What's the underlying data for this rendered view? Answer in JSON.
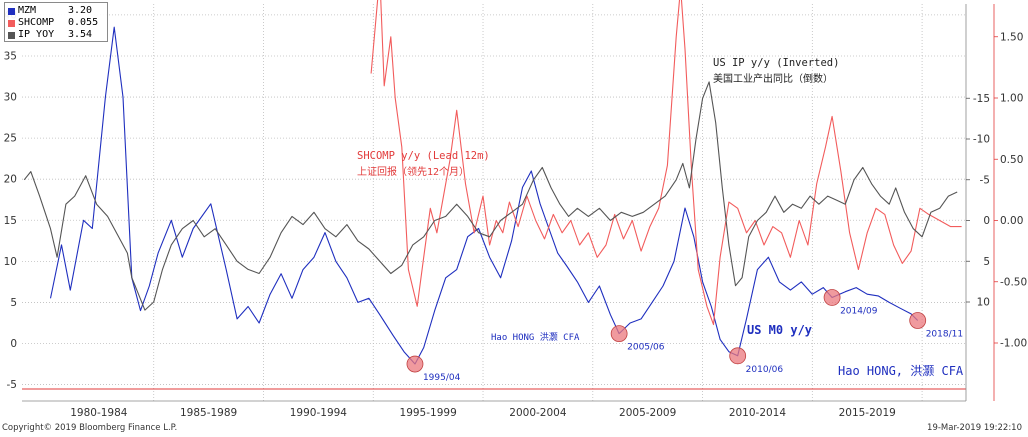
{
  "legend": [
    {
      "name": "MZM",
      "value": "3.20",
      "color": "#1f2fbf"
    },
    {
      "name": "SHCOMP",
      "value": "0.055",
      "color": "#f25c5c"
    },
    {
      "name": "IP  YOY",
      "value": "3.54",
      "color": "#555555"
    }
  ],
  "annotations": {
    "ip_title_en": "US IP y/y (Inverted)",
    "ip_title_cn": "美国工业产出同比（倒数）",
    "sh_title_en": "SHCOMP y/y (Lead 12m)",
    "sh_title_cn": "上证回报（领先12个月）",
    "author_small": "Hao HONG 洪灏 CFA",
    "m0_label": "US M0 y/y",
    "author_big": "Hao HONG, 洪灏 CFA"
  },
  "markers": [
    {
      "label": "1995/04",
      "x": 1996.9,
      "y": -2.5
    },
    {
      "label": "2005/06",
      "x": 2006.2,
      "y": 1.2
    },
    {
      "label": "2010/06",
      "x": 2011.6,
      "y": -1.5
    },
    {
      "label": "2014/09",
      "x": 2015.9,
      "y": 5.6
    },
    {
      "label": "2018/11",
      "x": 2019.8,
      "y": 2.8
    }
  ],
  "footer": {
    "copyright": "Copyright© 2019 Bloomberg Finance L.P.",
    "timestamp": "19-Mar-2019 19:22:10"
  },
  "chart_data": {
    "type": "line",
    "x_tick_labels": [
      "1980-1984",
      "1985-1989",
      "1990-1994",
      "1995-1999",
      "2000-2004",
      "2005-2009",
      "2010-2014",
      "2015-2019"
    ],
    "xlim": [
      1979.0,
      2022.0
    ],
    "left_axis": {
      "ylim": [
        -6,
        41
      ],
      "ticks": [
        -5,
        0,
        5,
        10,
        15,
        20,
        25,
        30,
        35,
        40
      ]
    },
    "ip_axis": {
      "inverted": true,
      "ticks": [
        -15,
        -10,
        -5,
        0,
        5,
        10
      ]
    },
    "shcomp_axis": {
      "ylim": [
        -1.25,
        2.15
      ],
      "ticks": [
        -1.0,
        -0.5,
        0.0,
        0.5,
        1.0,
        1.5,
        2.0
      ]
    },
    "series": [
      {
        "name": "MZM",
        "axis": "left",
        "color": "#1f2fbf",
        "points": [
          [
            1980.3,
            5.5
          ],
          [
            1980.8,
            12.0
          ],
          [
            1981.2,
            6.5
          ],
          [
            1981.8,
            15.0
          ],
          [
            1982.2,
            14.0
          ],
          [
            1982.8,
            30.0
          ],
          [
            1983.2,
            38.5
          ],
          [
            1983.6,
            30.0
          ],
          [
            1984.0,
            8.0
          ],
          [
            1984.4,
            4.0
          ],
          [
            1984.8,
            7.0
          ],
          [
            1985.2,
            11.0
          ],
          [
            1985.8,
            15.0
          ],
          [
            1986.3,
            10.5
          ],
          [
            1986.8,
            14.0
          ],
          [
            1987.6,
            17.0
          ],
          [
            1988.3,
            9.0
          ],
          [
            1988.8,
            3.0
          ],
          [
            1989.3,
            4.5
          ],
          [
            1989.8,
            2.5
          ],
          [
            1990.3,
            6.0
          ],
          [
            1990.8,
            8.5
          ],
          [
            1991.3,
            5.5
          ],
          [
            1991.8,
            9.0
          ],
          [
            1992.3,
            10.5
          ],
          [
            1992.8,
            13.5
          ],
          [
            1993.3,
            10.0
          ],
          [
            1993.8,
            8.0
          ],
          [
            1994.3,
            5.0
          ],
          [
            1994.8,
            5.5
          ],
          [
            1995.3,
            3.5
          ],
          [
            1995.9,
            1.0
          ],
          [
            1996.4,
            -1.0
          ],
          [
            1996.9,
            -2.5
          ],
          [
            1997.3,
            -0.5
          ],
          [
            1997.8,
            4.0
          ],
          [
            1998.3,
            8.0
          ],
          [
            1998.8,
            9.0
          ],
          [
            1999.3,
            13.0
          ],
          [
            1999.8,
            14.0
          ],
          [
            2000.3,
            10.5
          ],
          [
            2000.8,
            8.0
          ],
          [
            2001.3,
            12.5
          ],
          [
            2001.8,
            19.0
          ],
          [
            2002.2,
            21.0
          ],
          [
            2002.6,
            17.0
          ],
          [
            2003.0,
            14.0
          ],
          [
            2003.4,
            11.0
          ],
          [
            2003.8,
            9.5
          ],
          [
            2004.3,
            7.5
          ],
          [
            2004.8,
            5.0
          ],
          [
            2005.3,
            7.0
          ],
          [
            2005.8,
            3.5
          ],
          [
            2006.2,
            1.2
          ],
          [
            2006.7,
            2.5
          ],
          [
            2007.2,
            3.0
          ],
          [
            2007.7,
            5.0
          ],
          [
            2008.2,
            7.0
          ],
          [
            2008.7,
            10.0
          ],
          [
            2009.2,
            16.5
          ],
          [
            2009.6,
            13.0
          ],
          [
            2010.0,
            7.5
          ],
          [
            2010.4,
            4.5
          ],
          [
            2010.8,
            0.5
          ],
          [
            2011.2,
            -1.0
          ],
          [
            2011.6,
            -1.5
          ],
          [
            2012.0,
            3.0
          ],
          [
            2012.5,
            9.0
          ],
          [
            2013.0,
            10.5
          ],
          [
            2013.5,
            7.5
          ],
          [
            2014.0,
            6.5
          ],
          [
            2014.5,
            7.5
          ],
          [
            2015.0,
            6.0
          ],
          [
            2015.5,
            6.8
          ],
          [
            2015.9,
            5.6
          ],
          [
            2016.5,
            6.3
          ],
          [
            2017.0,
            6.8
          ],
          [
            2017.5,
            6.0
          ],
          [
            2018.0,
            5.8
          ],
          [
            2018.5,
            5.0
          ],
          [
            2019.0,
            4.3
          ],
          [
            2019.5,
            3.6
          ],
          [
            2019.8,
            2.8
          ]
        ]
      },
      {
        "name": "SHCOMP",
        "axis": "shcomp",
        "color": "#f25c5c",
        "points": [
          [
            1994.9,
            1.2
          ],
          [
            1995.3,
            2.0
          ],
          [
            1995.5,
            1.1
          ],
          [
            1995.8,
            1.5
          ],
          [
            1996.0,
            1.0
          ],
          [
            1996.3,
            0.6
          ],
          [
            1996.6,
            -0.4
          ],
          [
            1997.0,
            -0.7
          ],
          [
            1997.3,
            -0.3
          ],
          [
            1997.6,
            0.1
          ],
          [
            1997.9,
            -0.1
          ],
          [
            1998.2,
            0.2
          ],
          [
            1998.5,
            0.5
          ],
          [
            1998.8,
            0.9
          ],
          [
            1999.2,
            0.3
          ],
          [
            1999.6,
            -0.1
          ],
          [
            2000.0,
            0.2
          ],
          [
            2000.3,
            -0.2
          ],
          [
            2000.6,
            0.0
          ],
          [
            2000.9,
            -0.1
          ],
          [
            2001.2,
            0.15
          ],
          [
            2001.6,
            -0.05
          ],
          [
            2002.0,
            0.2
          ],
          [
            2002.4,
            0.0
          ],
          [
            2002.8,
            -0.15
          ],
          [
            2003.2,
            0.05
          ],
          [
            2003.6,
            -0.1
          ],
          [
            2004.0,
            0.0
          ],
          [
            2004.4,
            -0.2
          ],
          [
            2004.8,
            -0.1
          ],
          [
            2005.2,
            -0.3
          ],
          [
            2005.6,
            -0.2
          ],
          [
            2006.0,
            0.05
          ],
          [
            2006.4,
            -0.15
          ],
          [
            2006.8,
            0.0
          ],
          [
            2007.2,
            -0.25
          ],
          [
            2007.6,
            -0.05
          ],
          [
            2008.0,
            0.1
          ],
          [
            2008.4,
            0.45
          ],
          [
            2008.8,
            1.5
          ],
          [
            2009.0,
            1.9
          ],
          [
            2009.2,
            1.4
          ],
          [
            2009.5,
            0.4
          ],
          [
            2009.8,
            -0.4
          ],
          [
            2010.2,
            -0.7
          ],
          [
            2010.5,
            -0.85
          ],
          [
            2010.8,
            -0.3
          ],
          [
            2011.2,
            0.15
          ],
          [
            2011.6,
            0.1
          ],
          [
            2012.0,
            -0.1
          ],
          [
            2012.4,
            0.0
          ],
          [
            2012.8,
            -0.2
          ],
          [
            2013.2,
            -0.05
          ],
          [
            2013.6,
            -0.1
          ],
          [
            2014.0,
            -0.3
          ],
          [
            2014.4,
            0.0
          ],
          [
            2014.8,
            -0.2
          ],
          [
            2015.2,
            0.3
          ],
          [
            2015.6,
            0.6
          ],
          [
            2015.9,
            0.85
          ],
          [
            2016.3,
            0.4
          ],
          [
            2016.7,
            -0.1
          ],
          [
            2017.1,
            -0.4
          ],
          [
            2017.5,
            -0.1
          ],
          [
            2017.9,
            0.1
          ],
          [
            2018.3,
            0.05
          ],
          [
            2018.7,
            -0.2
          ],
          [
            2019.1,
            -0.35
          ],
          [
            2019.5,
            -0.25
          ],
          [
            2019.9,
            0.1
          ],
          [
            2020.3,
            0.05
          ],
          [
            2020.8,
            0.0
          ],
          [
            2021.3,
            -0.05
          ],
          [
            2021.8,
            -0.05
          ]
        ]
      },
      {
        "name": "IP  YOY",
        "axis": "ip",
        "color": "#555555",
        "points": [
          [
            1979.1,
            -5.0
          ],
          [
            1979.4,
            -6.0
          ],
          [
            1979.8,
            -3.0
          ],
          [
            1980.3,
            1.0
          ],
          [
            1980.6,
            4.5
          ],
          [
            1981.0,
            -2.0
          ],
          [
            1981.4,
            -3.0
          ],
          [
            1981.9,
            -5.5
          ],
          [
            1982.4,
            -2.0
          ],
          [
            1982.9,
            -0.5
          ],
          [
            1983.4,
            2.0
          ],
          [
            1983.8,
            4.0
          ],
          [
            1984.0,
            7.0
          ],
          [
            1984.3,
            9.0
          ],
          [
            1984.6,
            11.0
          ],
          [
            1985.0,
            10.0
          ],
          [
            1985.4,
            6.0
          ],
          [
            1985.8,
            3.0
          ],
          [
            1986.3,
            1.0
          ],
          [
            1986.8,
            0.0
          ],
          [
            1987.3,
            2.0
          ],
          [
            1987.8,
            1.0
          ],
          [
            1988.3,
            3.0
          ],
          [
            1988.8,
            5.0
          ],
          [
            1989.3,
            6.0
          ],
          [
            1989.8,
            6.5
          ],
          [
            1990.3,
            4.5
          ],
          [
            1990.8,
            1.5
          ],
          [
            1991.3,
            -0.5
          ],
          [
            1991.8,
            0.5
          ],
          [
            1992.3,
            -1.0
          ],
          [
            1992.8,
            1.0
          ],
          [
            1993.3,
            2.0
          ],
          [
            1993.8,
            0.5
          ],
          [
            1994.3,
            2.5
          ],
          [
            1994.8,
            3.5
          ],
          [
            1995.3,
            5.0
          ],
          [
            1995.8,
            6.5
          ],
          [
            1996.3,
            5.5
          ],
          [
            1996.8,
            3.0
          ],
          [
            1997.3,
            2.0
          ],
          [
            1997.8,
            0.0
          ],
          [
            1998.3,
            -0.5
          ],
          [
            1998.8,
            -2.0
          ],
          [
            1999.3,
            -0.5
          ],
          [
            1999.8,
            1.5
          ],
          [
            2000.3,
            2.0
          ],
          [
            2000.8,
            0.0
          ],
          [
            2001.3,
            -1.0
          ],
          [
            2001.8,
            -2.0
          ],
          [
            2002.3,
            -5.0
          ],
          [
            2002.7,
            -6.5
          ],
          [
            2003.1,
            -4.0
          ],
          [
            2003.5,
            -2.0
          ],
          [
            2003.9,
            -0.5
          ],
          [
            2004.3,
            -1.5
          ],
          [
            2004.8,
            -0.5
          ],
          [
            2005.3,
            -1.5
          ],
          [
            2005.8,
            0.0
          ],
          [
            2006.3,
            -1.0
          ],
          [
            2006.8,
            -0.5
          ],
          [
            2007.3,
            -1.0
          ],
          [
            2007.8,
            -2.0
          ],
          [
            2008.3,
            -3.0
          ],
          [
            2008.8,
            -5.0
          ],
          [
            2009.1,
            -7.0
          ],
          [
            2009.4,
            -4.0
          ],
          [
            2009.7,
            -10.0
          ],
          [
            2010.0,
            -15.0
          ],
          [
            2010.3,
            -17.0
          ],
          [
            2010.6,
            -12.0
          ],
          [
            2010.9,
            -4.0
          ],
          [
            2011.2,
            3.0
          ],
          [
            2011.5,
            8.0
          ],
          [
            2011.8,
            7.0
          ],
          [
            2012.1,
            2.0
          ],
          [
            2012.5,
            0.0
          ],
          [
            2012.9,
            -1.0
          ],
          [
            2013.3,
            -3.0
          ],
          [
            2013.7,
            -1.0
          ],
          [
            2014.1,
            -2.0
          ],
          [
            2014.5,
            -1.5
          ],
          [
            2014.9,
            -3.0
          ],
          [
            2015.3,
            -2.0
          ],
          [
            2015.7,
            -3.0
          ],
          [
            2016.1,
            -2.5
          ],
          [
            2016.5,
            -2.0
          ],
          [
            2016.9,
            -5.0
          ],
          [
            2017.3,
            -6.5
          ],
          [
            2017.7,
            -4.5
          ],
          [
            2018.1,
            -3.0
          ],
          [
            2018.5,
            -2.0
          ],
          [
            2018.8,
            -4.0
          ],
          [
            2019.2,
            -1.0
          ],
          [
            2019.6,
            1.0
          ],
          [
            2020.0,
            2.0
          ],
          [
            2020.4,
            -1.0
          ],
          [
            2020.8,
            -1.5
          ],
          [
            2021.2,
            -3.0
          ],
          [
            2021.6,
            -3.5
          ]
        ]
      }
    ]
  }
}
